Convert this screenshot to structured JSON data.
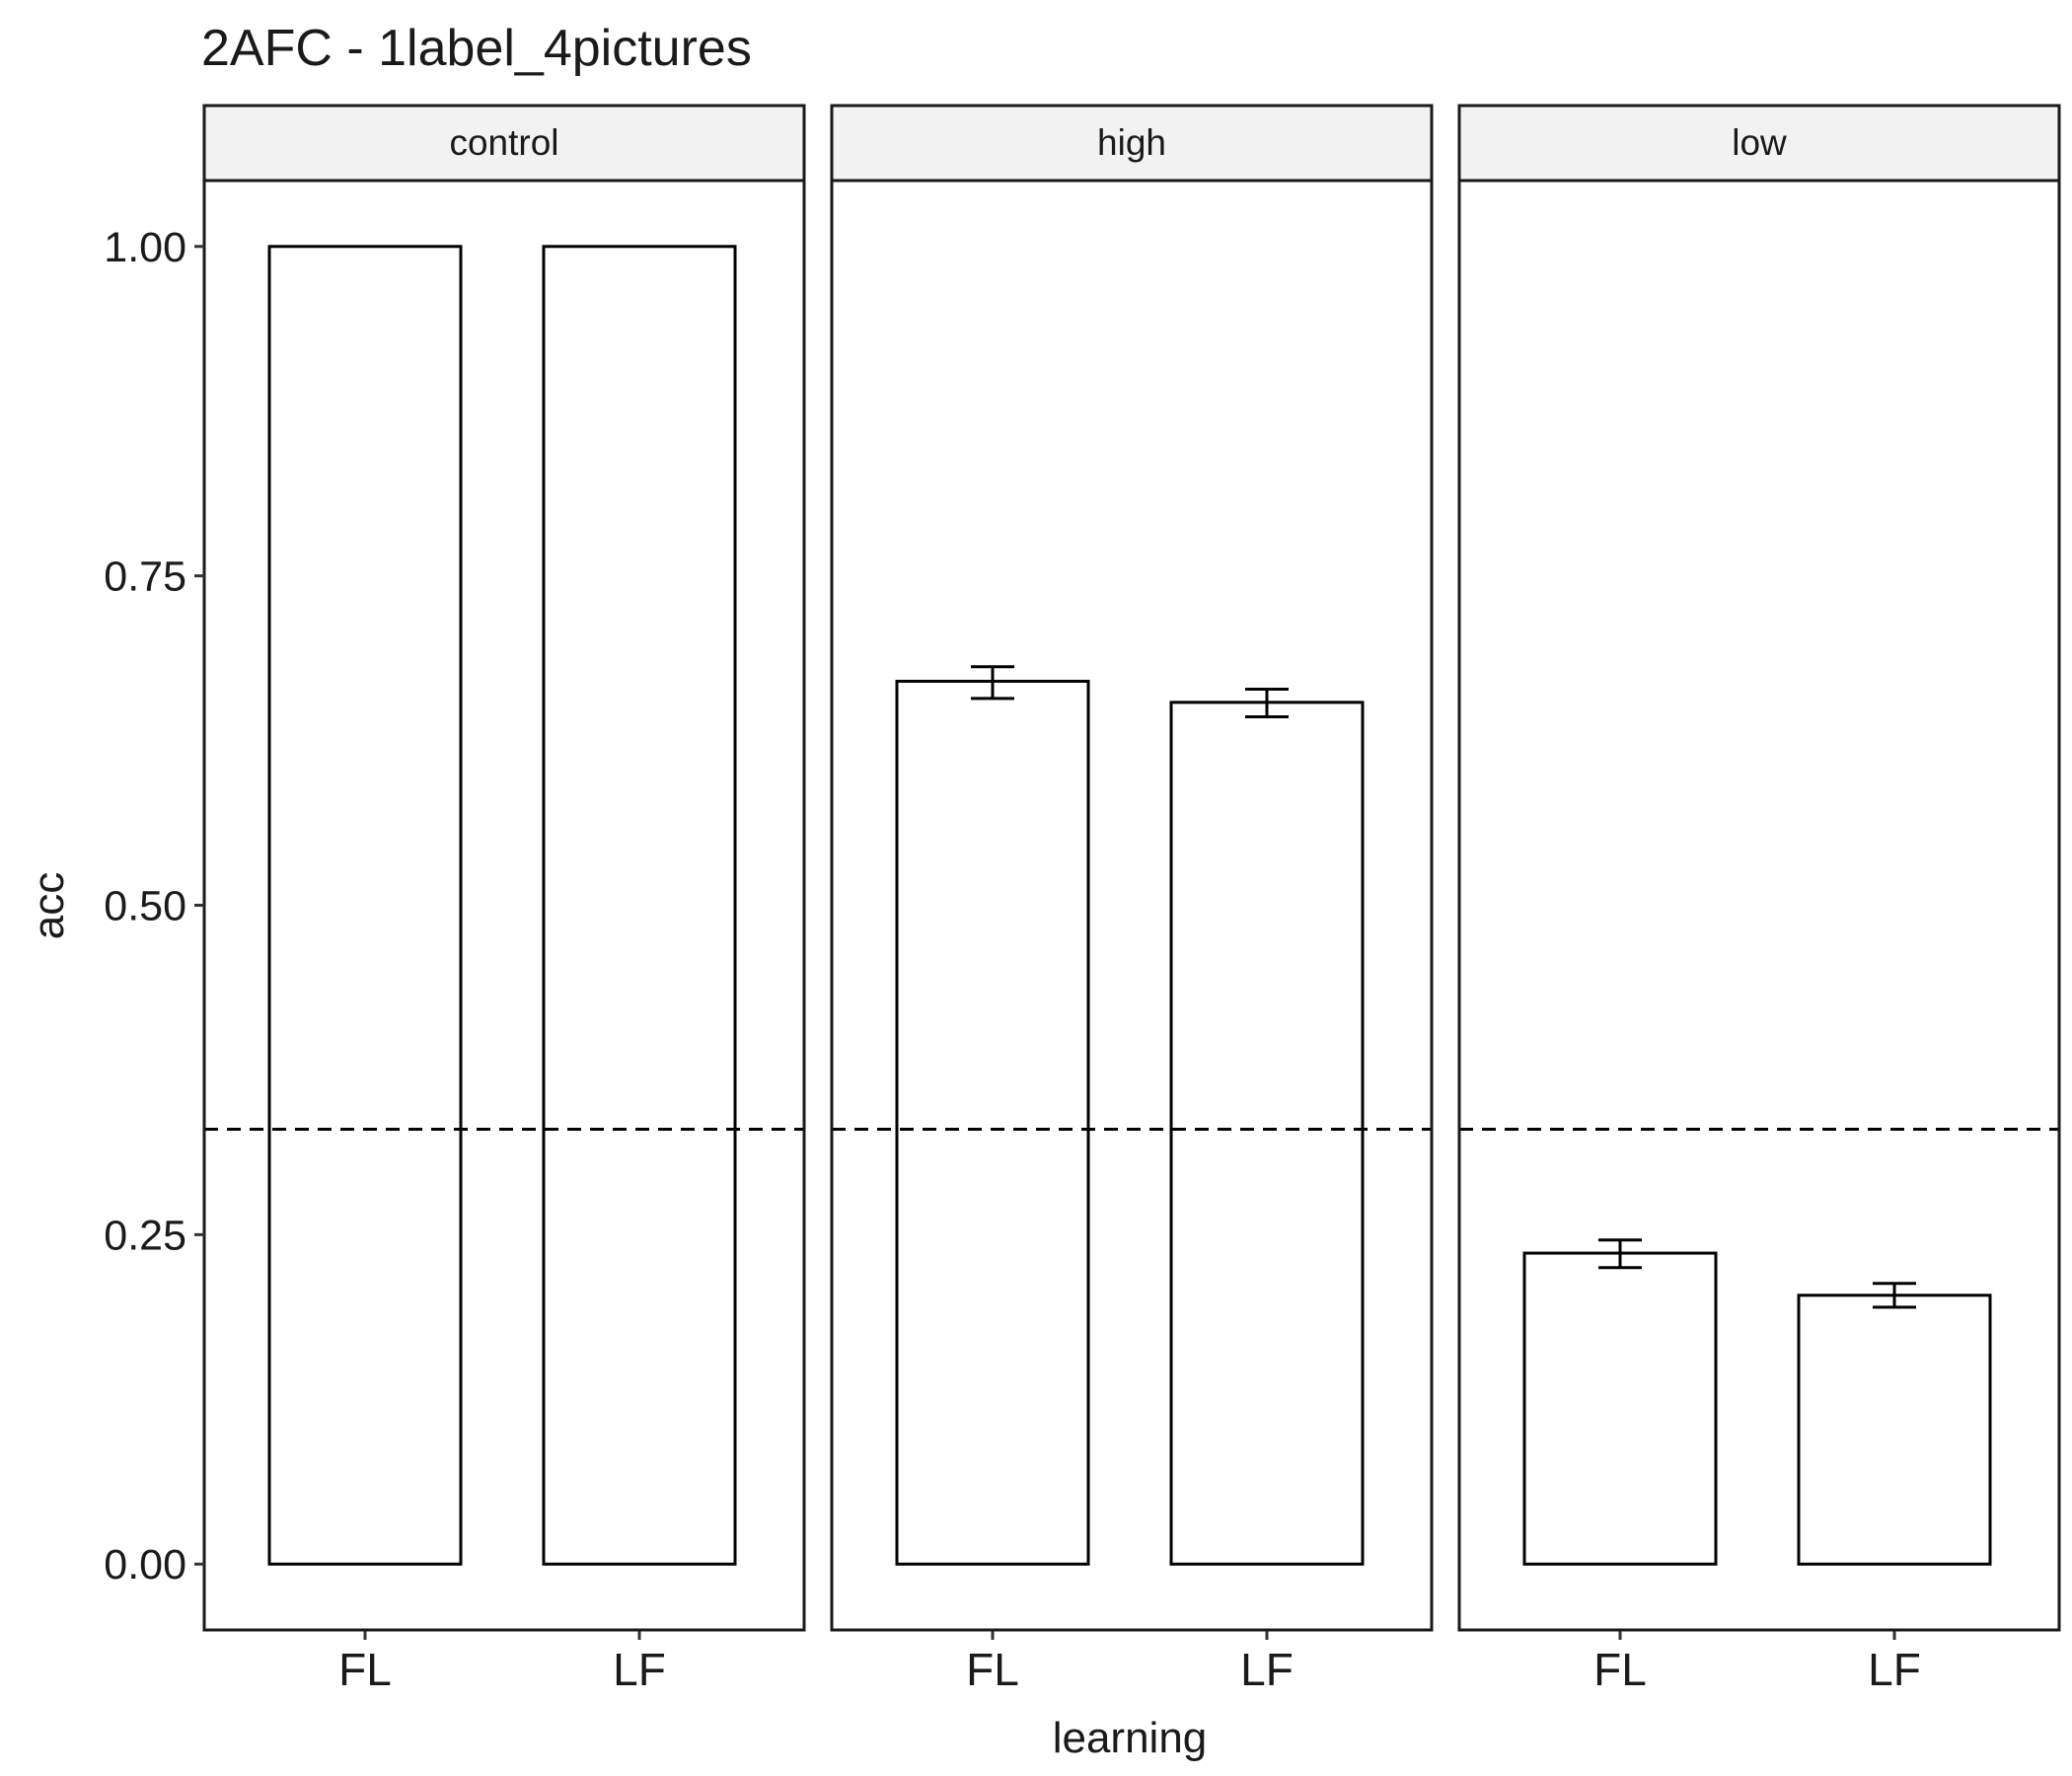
{
  "chart_data": {
    "type": "bar",
    "title": "2AFC - 1label_4pictures",
    "xlabel": "learning",
    "ylabel": "acc",
    "ylim": [
      -0.05,
      1.05
    ],
    "yticks": [
      0.0,
      0.25,
      0.5,
      0.75,
      1.0
    ],
    "ytick_labels": [
      "0.00",
      "0.25",
      "0.50",
      "0.75",
      "1.00"
    ],
    "categories": [
      "FL",
      "LF"
    ],
    "reference_line": {
      "y": 0.33,
      "style": "dashed",
      "color": "#000000"
    },
    "panels": [
      {
        "facet": "control",
        "values": [
          1.0,
          1.0
        ],
        "errors": [
          null,
          null
        ]
      },
      {
        "facet": "high",
        "values": [
          0.67,
          0.654
        ],
        "errors": [
          [
            0.657,
            0.681
          ],
          [
            0.643,
            0.664
          ]
        ]
      },
      {
        "facet": "low",
        "values": [
          0.236,
          0.204
        ],
        "errors": [
          [
            0.225,
            0.246
          ],
          [
            0.195,
            0.213
          ]
        ]
      }
    ],
    "bar_fill": "#ffffff",
    "bar_stroke": "#000000",
    "strip_fill": "#f2f2f2",
    "grid": false,
    "legend": "none"
  }
}
